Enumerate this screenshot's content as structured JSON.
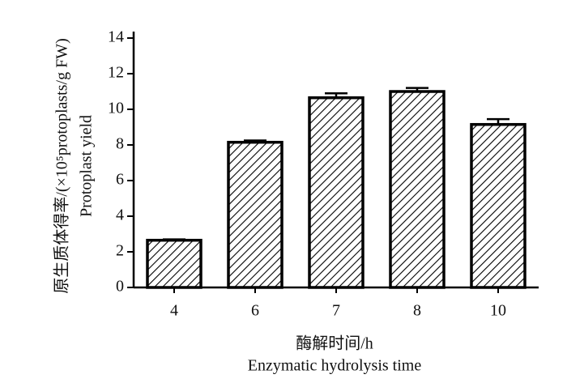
{
  "chart_data": {
    "type": "bar",
    "y_label": [
      "原生质体得率/(×10⁵protoplasts/g FW)",
      "Protoplast yield"
    ],
    "x_label": [
      "酶解时间/h",
      "Enzymatic hydrolysis time"
    ],
    "categories": [
      "4",
      "6",
      "7",
      "8",
      "10"
    ],
    "values": [
      2.65,
      8.15,
      10.65,
      11.0,
      9.15
    ],
    "errors": [
      0.05,
      0.1,
      0.25,
      0.2,
      0.3
    ],
    "color": "#000000",
    "ylim": [
      0,
      14
    ],
    "yticks": [
      0,
      2,
      4,
      6,
      8,
      10,
      12,
      14
    ],
    "grid": false
  }
}
